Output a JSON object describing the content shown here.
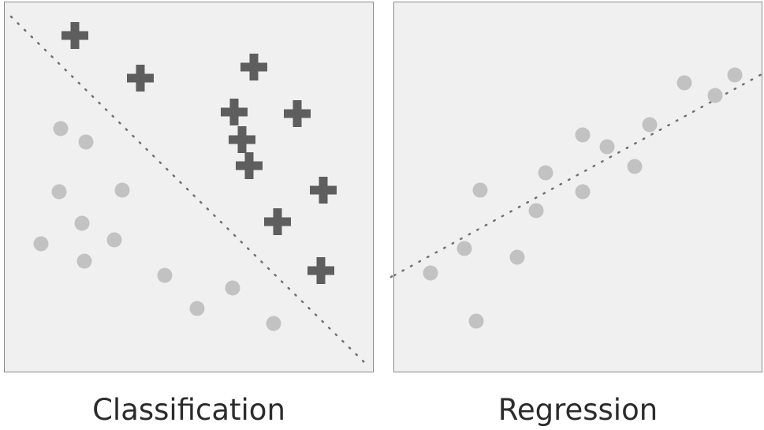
{
  "panels": [
    {
      "caption": "Classification"
    },
    {
      "caption": "Regression"
    }
  ],
  "colors": {
    "circle": "#c2c2c2",
    "cross": "#5e5e5e",
    "dotted_line": "#707070",
    "panel_bg": "#f0f0f0",
    "panel_border": "#8a8a8a"
  }
}
